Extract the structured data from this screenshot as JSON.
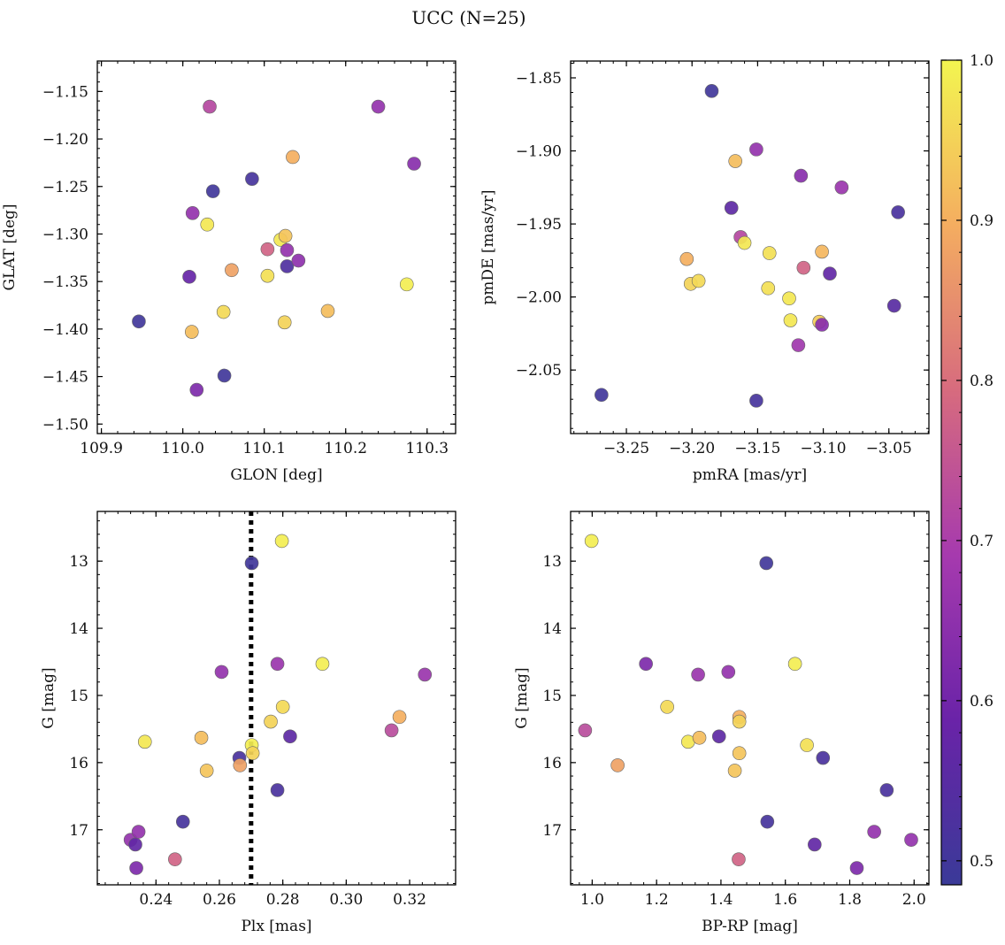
{
  "figure": {
    "title": "UCC (N=25)",
    "colorbar": {
      "ticks": [
        "0.5",
        "0.6",
        "0.7",
        "0.8",
        "0.9",
        "1.0"
      ],
      "range": [
        0.485,
        1.0
      ],
      "colormap": "plasma"
    }
  },
  "chart_data": [
    {
      "type": "scatter",
      "panel": "top-left",
      "xlabel": "GLON [deg]",
      "ylabel": "GLAT [deg]",
      "xlim": [
        109.895,
        110.335
      ],
      "ylim": [
        -1.51,
        -1.118
      ],
      "y_inverted": false,
      "xticks": [
        {
          "v": 109.9,
          "label": "109.9"
        },
        {
          "v": 110.0,
          "label": "110.0"
        },
        {
          "v": 110.1,
          "label": "110.1"
        },
        {
          "v": 110.2,
          "label": "110.2"
        },
        {
          "v": 110.3,
          "label": "110.3"
        }
      ],
      "yticks": [
        {
          "v": -1.5,
          "label": "−1.50"
        },
        {
          "v": -1.45,
          "label": "−1.45"
        },
        {
          "v": -1.4,
          "label": "−1.40"
        },
        {
          "v": -1.35,
          "label": "−1.35"
        },
        {
          "v": -1.3,
          "label": "−1.30"
        },
        {
          "v": -1.25,
          "label": "−1.25"
        },
        {
          "v": -1.2,
          "label": "−1.20"
        },
        {
          "v": -1.15,
          "label": "−1.15"
        }
      ],
      "points": [
        {
          "x": 109.946,
          "y": -1.392,
          "c": 0.5
        },
        {
          "x": 110.008,
          "y": -1.345,
          "c": 0.58
        },
        {
          "x": 110.012,
          "y": -1.278,
          "c": 0.66
        },
        {
          "x": 110.017,
          "y": -1.464,
          "c": 0.62
        },
        {
          "x": 110.011,
          "y": -1.403,
          "c": 0.92
        },
        {
          "x": 110.03,
          "y": -1.29,
          "c": 0.98
        },
        {
          "x": 110.033,
          "y": -1.166,
          "c": 0.72
        },
        {
          "x": 110.037,
          "y": -1.255,
          "c": 0.5
        },
        {
          "x": 110.05,
          "y": -1.382,
          "c": 0.96
        },
        {
          "x": 110.051,
          "y": -1.449,
          "c": 0.5
        },
        {
          "x": 110.06,
          "y": -1.338,
          "c": 0.88
        },
        {
          "x": 110.085,
          "y": -1.242,
          "c": 0.51
        },
        {
          "x": 110.104,
          "y": -1.316,
          "c": 0.78
        },
        {
          "x": 110.104,
          "y": -1.344,
          "c": 0.97
        },
        {
          "x": 110.12,
          "y": -1.306,
          "c": 0.98
        },
        {
          "x": 110.126,
          "y": -1.302,
          "c": 0.93
        },
        {
          "x": 110.125,
          "y": -1.393,
          "c": 0.95
        },
        {
          "x": 110.128,
          "y": -1.334,
          "c": 0.53
        },
        {
          "x": 110.128,
          "y": -1.317,
          "c": 0.66
        },
        {
          "x": 110.135,
          "y": -1.219,
          "c": 0.9
        },
        {
          "x": 110.142,
          "y": -1.328,
          "c": 0.65
        },
        {
          "x": 110.178,
          "y": -1.381,
          "c": 0.92
        },
        {
          "x": 110.24,
          "y": -1.166,
          "c": 0.66
        },
        {
          "x": 110.275,
          "y": -1.353,
          "c": 0.99
        },
        {
          "x": 110.284,
          "y": -1.226,
          "c": 0.64
        }
      ]
    },
    {
      "type": "scatter",
      "panel": "top-right",
      "xlabel": "pmRA [mas/yr]",
      "ylabel": "pmDE [mas/yr]",
      "xlim": [
        -3.2925,
        -3.0195
      ],
      "ylim": [
        -2.0935,
        -1.8385
      ],
      "y_inverted": false,
      "xticks": [
        {
          "v": -3.25,
          "label": "−3.25"
        },
        {
          "v": -3.2,
          "label": "−3.20"
        },
        {
          "v": -3.15,
          "label": "−3.15"
        },
        {
          "v": -3.1,
          "label": "−3.10"
        },
        {
          "v": -3.05,
          "label": "−3.05"
        }
      ],
      "yticks": [
        {
          "v": -2.05,
          "label": "−2.05"
        },
        {
          "v": -2.0,
          "label": "−2.00"
        },
        {
          "v": -1.95,
          "label": "−1.95"
        },
        {
          "v": -1.9,
          "label": "−1.90"
        },
        {
          "v": -1.85,
          "label": "−1.85"
        }
      ],
      "points": [
        {
          "x": -3.269,
          "y": -2.067,
          "c": 0.5
        },
        {
          "x": -3.204,
          "y": -1.974,
          "c": 0.9
        },
        {
          "x": -3.201,
          "y": -1.991,
          "c": 0.95
        },
        {
          "x": -3.195,
          "y": -1.989,
          "c": 0.96
        },
        {
          "x": -3.185,
          "y": -1.859,
          "c": 0.5
        },
        {
          "x": -3.17,
          "y": -1.939,
          "c": 0.56
        },
        {
          "x": -3.167,
          "y": -1.907,
          "c": 0.92
        },
        {
          "x": -3.163,
          "y": -1.959,
          "c": 0.72
        },
        {
          "x": -3.16,
          "y": -1.963,
          "c": 0.98
        },
        {
          "x": -3.151,
          "y": -1.899,
          "c": 0.66
        },
        {
          "x": -3.151,
          "y": -2.071,
          "c": 0.51
        },
        {
          "x": -3.142,
          "y": -1.994,
          "c": 0.97
        },
        {
          "x": -3.141,
          "y": -1.97,
          "c": 0.97
        },
        {
          "x": -3.126,
          "y": -2.001,
          "c": 0.98
        },
        {
          "x": -3.125,
          "y": -2.016,
          "c": 0.98
        },
        {
          "x": -3.119,
          "y": -2.033,
          "c": 0.68
        },
        {
          "x": -3.117,
          "y": -1.917,
          "c": 0.64
        },
        {
          "x": -3.115,
          "y": -1.98,
          "c": 0.78
        },
        {
          "x": -3.103,
          "y": -2.017,
          "c": 0.94
        },
        {
          "x": -3.101,
          "y": -1.969,
          "c": 0.91
        },
        {
          "x": -3.101,
          "y": -2.019,
          "c": 0.64
        },
        {
          "x": -3.095,
          "y": -1.984,
          "c": 0.57
        },
        {
          "x": -3.086,
          "y": -1.925,
          "c": 0.67
        },
        {
          "x": -3.046,
          "y": -2.006,
          "c": 0.55
        },
        {
          "x": -3.043,
          "y": -1.942,
          "c": 0.52
        }
      ]
    },
    {
      "type": "scatter",
      "panel": "bottom-left",
      "xlabel": "Plx [mas]",
      "ylabel": "G [mag]",
      "xlim": [
        0.2215,
        0.3345
      ],
      "ylim": [
        12.26,
        17.82
      ],
      "y_inverted": true,
      "reference_line": {
        "x": 0.27,
        "style": "dotted",
        "color": "#000000"
      },
      "xticks": [
        {
          "v": 0.24,
          "label": "0.24"
        },
        {
          "v": 0.26,
          "label": "0.26"
        },
        {
          "v": 0.28,
          "label": "0.28"
        },
        {
          "v": 0.3,
          "label": "0.30"
        },
        {
          "v": 0.32,
          "label": "0.32"
        }
      ],
      "yticks": [
        {
          "v": 13,
          "label": "13"
        },
        {
          "v": 14,
          "label": "14"
        },
        {
          "v": 15,
          "label": "15"
        },
        {
          "v": 16,
          "label": "16"
        },
        {
          "v": 17,
          "label": "17"
        }
      ],
      "points": [
        {
          "x": 0.232,
          "y": 17.15,
          "c": 0.66
        },
        {
          "x": 0.2335,
          "y": 17.22,
          "c": 0.57
        },
        {
          "x": 0.2338,
          "y": 17.57,
          "c": 0.62
        },
        {
          "x": 0.2345,
          "y": 17.03,
          "c": 0.66
        },
        {
          "x": 0.2365,
          "y": 15.69,
          "c": 0.98
        },
        {
          "x": 0.246,
          "y": 17.44,
          "c": 0.78
        },
        {
          "x": 0.2485,
          "y": 16.88,
          "c": 0.51
        },
        {
          "x": 0.2543,
          "y": 15.63,
          "c": 0.92
        },
        {
          "x": 0.256,
          "y": 16.12,
          "c": 0.93
        },
        {
          "x": 0.2607,
          "y": 14.65,
          "c": 0.66
        },
        {
          "x": 0.2663,
          "y": 15.93,
          "c": 0.52
        },
        {
          "x": 0.2665,
          "y": 16.04,
          "c": 0.88
        },
        {
          "x": 0.2702,
          "y": 13.03,
          "c": 0.5
        },
        {
          "x": 0.2702,
          "y": 15.74,
          "c": 0.99
        },
        {
          "x": 0.2705,
          "y": 15.86,
          "c": 0.95
        },
        {
          "x": 0.2762,
          "y": 15.39,
          "c": 0.95
        },
        {
          "x": 0.2783,
          "y": 14.53,
          "c": 0.67
        },
        {
          "x": 0.2783,
          "y": 16.41,
          "c": 0.52
        },
        {
          "x": 0.2797,
          "y": 12.7,
          "c": 0.99
        },
        {
          "x": 0.28,
          "y": 15.17,
          "c": 0.96
        },
        {
          "x": 0.2823,
          "y": 15.61,
          "c": 0.56
        },
        {
          "x": 0.2925,
          "y": 14.53,
          "c": 0.99
        },
        {
          "x": 0.3143,
          "y": 15.52,
          "c": 0.73
        },
        {
          "x": 0.3168,
          "y": 15.32,
          "c": 0.9
        },
        {
          "x": 0.3248,
          "y": 14.69,
          "c": 0.67
        }
      ]
    },
    {
      "type": "scatter",
      "panel": "bottom-right",
      "xlabel": "BP-RP [mag]",
      "ylabel": "G [mag]",
      "xlim": [
        0.933,
        2.046
      ],
      "ylim": [
        12.26,
        17.82
      ],
      "y_inverted": true,
      "xticks": [
        {
          "v": 1.0,
          "label": "1.0"
        },
        {
          "v": 1.2,
          "label": "1.2"
        },
        {
          "v": 1.4,
          "label": "1.4"
        },
        {
          "v": 1.6,
          "label": "1.6"
        },
        {
          "v": 1.8,
          "label": "1.8"
        },
        {
          "v": 2.0,
          "label": "2.0"
        }
      ],
      "yticks": [
        {
          "v": 13,
          "label": "13"
        },
        {
          "v": 14,
          "label": "14"
        },
        {
          "v": 15,
          "label": "15"
        },
        {
          "v": 16,
          "label": "16"
        },
        {
          "v": 17,
          "label": "17"
        }
      ],
      "points": [
        {
          "x": 0.978,
          "y": 15.52,
          "c": 0.73
        },
        {
          "x": 0.998,
          "y": 12.7,
          "c": 0.99
        },
        {
          "x": 1.079,
          "y": 16.04,
          "c": 0.88
        },
        {
          "x": 1.167,
          "y": 14.53,
          "c": 0.62
        },
        {
          "x": 1.233,
          "y": 15.17,
          "c": 0.96
        },
        {
          "x": 1.298,
          "y": 15.69,
          "c": 0.98
        },
        {
          "x": 1.329,
          "y": 14.69,
          "c": 0.67
        },
        {
          "x": 1.333,
          "y": 15.63,
          "c": 0.92
        },
        {
          "x": 1.394,
          "y": 15.61,
          "c": 0.56
        },
        {
          "x": 1.423,
          "y": 14.65,
          "c": 0.66
        },
        {
          "x": 1.443,
          "y": 16.12,
          "c": 0.93
        },
        {
          "x": 1.455,
          "y": 17.44,
          "c": 0.78
        },
        {
          "x": 1.457,
          "y": 15.32,
          "c": 0.9
        },
        {
          "x": 1.457,
          "y": 15.39,
          "c": 0.95
        },
        {
          "x": 1.457,
          "y": 15.86,
          "c": 0.93
        },
        {
          "x": 1.541,
          "y": 13.03,
          "c": 0.5
        },
        {
          "x": 1.544,
          "y": 16.88,
          "c": 0.51
        },
        {
          "x": 1.63,
          "y": 14.53,
          "c": 0.99
        },
        {
          "x": 1.667,
          "y": 15.74,
          "c": 0.97
        },
        {
          "x": 1.691,
          "y": 17.22,
          "c": 0.57
        },
        {
          "x": 1.717,
          "y": 15.93,
          "c": 0.52
        },
        {
          "x": 1.822,
          "y": 17.57,
          "c": 0.62
        },
        {
          "x": 1.876,
          "y": 17.03,
          "c": 0.66
        },
        {
          "x": 1.915,
          "y": 16.41,
          "c": 0.52
        },
        {
          "x": 1.991,
          "y": 17.15,
          "c": 0.66
        }
      ]
    }
  ]
}
